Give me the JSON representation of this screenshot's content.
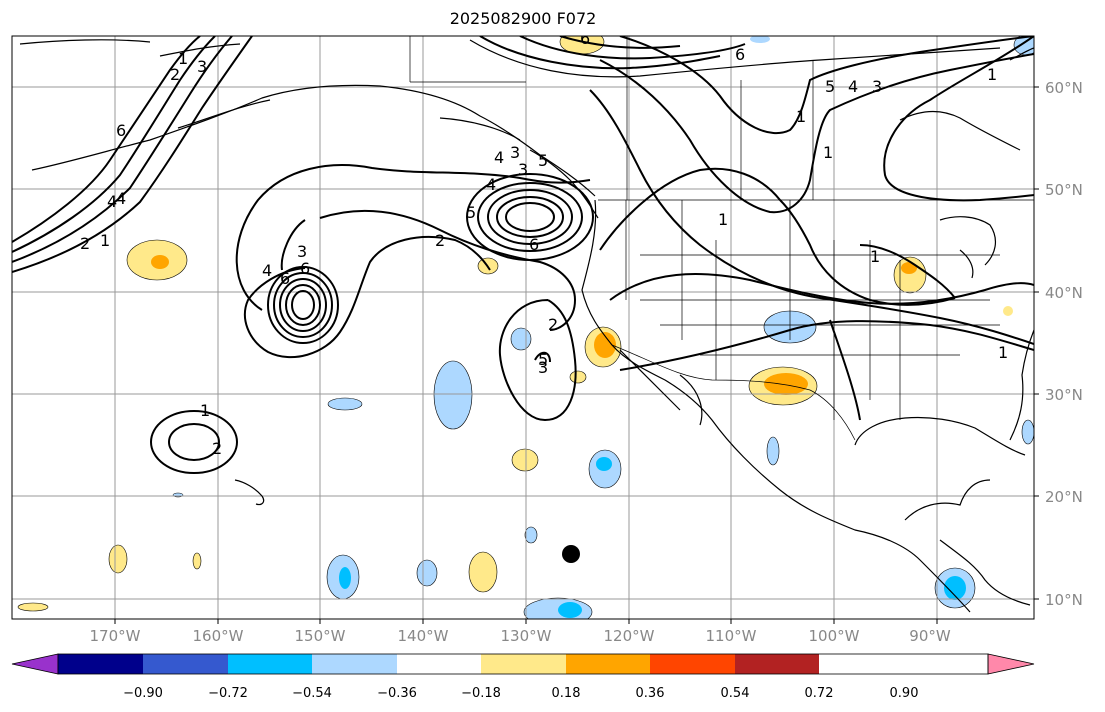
{
  "title": "2025082900 F072",
  "lon_labels": [
    "170°W",
    "160°W",
    "150°W",
    "140°W",
    "130°W",
    "120°W",
    "110°W",
    "100°W",
    "90°W"
  ],
  "lat_labels": [
    "60°N",
    "50°N",
    "40°N",
    "30°N",
    "20°N",
    "10°N"
  ],
  "colorbar": {
    "ticks": [
      "−0.90",
      "−0.72",
      "−0.54",
      "−0.36",
      "−0.18",
      "0.18",
      "0.36",
      "0.54",
      "0.72",
      "0.90"
    ],
    "colors": [
      "#9932cc",
      "#00008b",
      "#3559cf",
      "#00bfff",
      "#add8ff",
      "#ffffff",
      "#ffe98a",
      "#ffa500",
      "#ff4500",
      "#b22222",
      "#ff88aa"
    ]
  },
  "contour_labels": [
    "2",
    "3",
    "6",
    "6",
    "4",
    "1",
    "2",
    "1",
    "4",
    "6",
    "5",
    "4",
    "3",
    "6",
    "5",
    "3",
    "2",
    "6",
    "4",
    "1",
    "1",
    "5",
    "4",
    "3",
    "1",
    "4",
    "6",
    "5",
    "3",
    "2",
    "3",
    "1",
    "2",
    "1",
    "1",
    "1"
  ],
  "marker": "filled-circle"
}
